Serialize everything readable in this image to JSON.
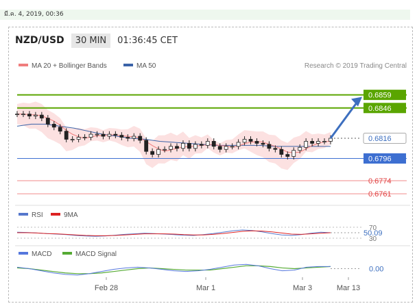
{
  "timestamp_bar": "มี.ค. 4, 2019, 00:36",
  "header": {
    "pair": "NZD/USD",
    "interval": "30 MIN",
    "time": "01:36:45 CET"
  },
  "legend": {
    "ma20": "MA 20 + Bollinger Bands",
    "ma50": "MA 50",
    "credit": "Research © 2019 Trading Central",
    "rsi": "RSI",
    "rsi_ma": "9MA",
    "macd": "MACD",
    "macd_signal": "MACD Signal"
  },
  "colors": {
    "ma20": "#f07d7d",
    "ma50": "#3b63a8",
    "band": "#fbdcdc",
    "resistance": "#5aa500",
    "support": "#3d6fd1",
    "support_weak": "#f08a8a",
    "current": "#555555",
    "arrow": "#3d6fbf",
    "rsi_line": "#5577cc",
    "rsi_ma": "#dd2222",
    "macd_line": "#5577dd",
    "macd_signal": "#55aa33"
  },
  "chart_data": {
    "type": "line",
    "title": "NZD/USD 30 MIN",
    "x_ticks": [
      "Feb 28",
      "Mar 1",
      "Mar 3",
      "Mar 13"
    ],
    "ylim": [
      0.6755,
      0.6875
    ],
    "price_close": [
      0.684,
      0.684,
      0.6838,
      0.6839,
      0.6836,
      0.683,
      0.6827,
      0.6823,
      0.6815,
      0.6815,
      0.6817,
      0.6817,
      0.682,
      0.682,
      0.6818,
      0.682,
      0.6819,
      0.6817,
      0.6816,
      0.6818,
      0.6814,
      0.6803,
      0.68,
      0.6805,
      0.6805,
      0.6808,
      0.6806,
      0.6811,
      0.6806,
      0.681,
      0.6809,
      0.6813,
      0.6808,
      0.6805,
      0.6808,
      0.6808,
      0.6812,
      0.6815,
      0.6813,
      0.6811,
      0.681,
      0.6806,
      0.6805,
      0.68,
      0.6798,
      0.6804,
      0.6807,
      0.6813,
      0.6811,
      0.6813,
      0.6813,
      0.6816
    ],
    "ma50": [
      0.6828,
      0.683,
      0.683,
      0.6828,
      0.6826,
      0.6823,
      0.682,
      0.6818,
      0.6816,
      0.6815,
      0.6813,
      0.6812,
      0.6811,
      0.681,
      0.6809,
      0.6809,
      0.6809,
      0.6809,
      0.6808,
      0.6808,
      0.6808,
      0.6808,
      0.6808
    ],
    "levels": [
      {
        "label": "0.6859",
        "value": 0.6859,
        "kind": "resistance"
      },
      {
        "label": "0.6846",
        "value": 0.6846,
        "kind": "resistance"
      },
      {
        "label": "0.6816",
        "value": 0.6816,
        "kind": "current"
      },
      {
        "label": "0.6796",
        "value": 0.6796,
        "kind": "support"
      },
      {
        "label": "0.6774",
        "value": 0.6774,
        "kind": "support_weak"
      },
      {
        "label": "0.6761",
        "value": 0.6761,
        "kind": "support_weak"
      }
    ],
    "rsi": {
      "ylim": [
        20,
        80
      ],
      "ticks": [
        "70",
        "30"
      ],
      "last_label": "50.09",
      "last": 50.09,
      "values": [
        52,
        51,
        49,
        47,
        45,
        43,
        40,
        38,
        37,
        38,
        41,
        44,
        46,
        48,
        47,
        45,
        43,
        41,
        40,
        43,
        47,
        52,
        57,
        60,
        58,
        53,
        47,
        42,
        40,
        43,
        48,
        52,
        50
      ],
      "ma_values": [
        50,
        50,
        49,
        47,
        46,
        44,
        42,
        40,
        39,
        39,
        40,
        42,
        44,
        46,
        46,
        46,
        45,
        43,
        42,
        42,
        44,
        47,
        51,
        55,
        57,
        56,
        53,
        49,
        45,
        44,
        46,
        48,
        50
      ]
    },
    "macd": {
      "ylim": [
        -0.0012,
        0.0012
      ],
      "last_label": "0.00",
      "last": 0.0,
      "values": [
        0.0002,
        0.0,
        -0.0003,
        -0.0006,
        -0.0008,
        -0.0009,
        -0.0007,
        -0.0004,
        -0.0001,
        0.0001,
        0.0002,
        0.0001,
        -0.0001,
        -0.0003,
        -0.0004,
        -0.0003,
        -0.0001,
        0.0002,
        0.0005,
        0.0006,
        0.0004,
        0.0,
        -0.0003,
        -0.0002,
        0.0002,
        0.0003,
        0.0003
      ],
      "signal": [
        0.0001,
        0.0,
        -0.0002,
        -0.0004,
        -0.0006,
        -0.0007,
        -0.0007,
        -0.0006,
        -0.0004,
        -0.0002,
        0.0,
        0.0001,
        0.0,
        -0.0001,
        -0.0002,
        -0.0002,
        -0.0002,
        0.0,
        0.0002,
        0.0004,
        0.0004,
        0.0003,
        0.0001,
        0.0,
        0.0001,
        0.0002,
        0.0003
      ]
    }
  }
}
